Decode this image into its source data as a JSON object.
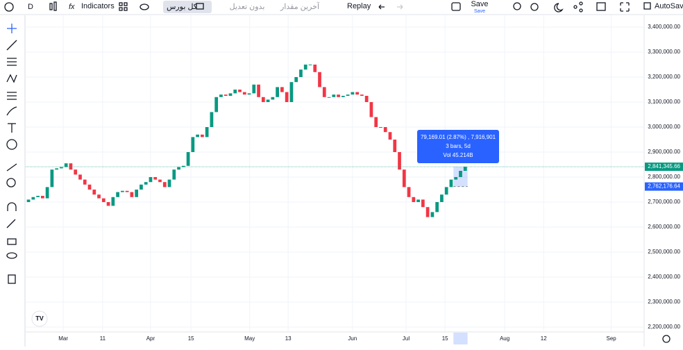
{
  "toolbar": {
    "interval": "D",
    "indicators": "Indicators",
    "symbol": "کل بورس",
    "adjustment": "بدون تعدیل",
    "price_source": "آخرین مقدار",
    "replay": "Replay",
    "save": "Save",
    "save_sub": "Save",
    "autosave": "AutoSave"
  },
  "tooltip": {
    "change": "79,169.01 (2.87%) , 7,916,901",
    "range": "3 bars, 5d",
    "volume": "Vol 45.214B"
  },
  "chart_data": {
    "type": "candlestick",
    "x": [
      0,
      1,
      2,
      3,
      4,
      5,
      6,
      7,
      8,
      9,
      10,
      11,
      12,
      13,
      14,
      15,
      16,
      17,
      18,
      19,
      20,
      21,
      22,
      23,
      24,
      25,
      26,
      27,
      28,
      29,
      30,
      31,
      32,
      33,
      34,
      35,
      36,
      37,
      38,
      39,
      40,
      41,
      42,
      43,
      44,
      45,
      46,
      47,
      48,
      49,
      50,
      51,
      52,
      53,
      54,
      55,
      56,
      57,
      58,
      59,
      60,
      61,
      62,
      63,
      64,
      65,
      66,
      67,
      68,
      69,
      70,
      71,
      72,
      73,
      74,
      75,
      76,
      77,
      78,
      79,
      80,
      81,
      82,
      83,
      84,
      85,
      86,
      87,
      88,
      89,
      90,
      91,
      92,
      93
    ],
    "open": [
      2700000,
      2710000,
      2720000,
      2725000,
      2715000,
      2760000,
      2830000,
      2835000,
      2840000,
      2855000,
      2830000,
      2810000,
      2790000,
      2770000,
      2750000,
      2730000,
      2715000,
      2700000,
      2685000,
      2720000,
      2740000,
      2745000,
      2740000,
      2720000,
      2750000,
      2770000,
      2780000,
      2800000,
      2790000,
      2780000,
      2760000,
      2790000,
      2830000,
      2840000,
      2845000,
      2900000,
      2960000,
      2970000,
      2960000,
      3000000,
      3060000,
      3120000,
      3130000,
      3125000,
      3135000,
      3150000,
      3140000,
      3130000,
      3135000,
      3170000,
      3120000,
      3100000,
      3110000,
      3120000,
      3160000,
      3140000,
      3100000,
      3180000,
      3200000,
      3230000,
      3250000,
      3250000,
      3220000,
      3160000,
      3120000,
      3120000,
      3130000,
      3120000,
      3125000,
      3130000,
      3140000,
      3130000,
      3125000,
      3100000,
      3040000,
      3000000,
      3000000,
      2980000,
      2950000,
      2900000,
      2830000,
      2760000,
      2720000,
      2700000,
      2710000,
      2680000,
      2640000,
      2660000,
      2700000,
      2730000,
      2760000,
      2790000,
      2800000,
      2825000
    ],
    "close": [
      2710000,
      2720000,
      2725000,
      2715000,
      2760000,
      2830000,
      2835000,
      2840000,
      2855000,
      2830000,
      2810000,
      2790000,
      2770000,
      2750000,
      2730000,
      2715000,
      2700000,
      2685000,
      2720000,
      2740000,
      2745000,
      2740000,
      2720000,
      2750000,
      2770000,
      2780000,
      2800000,
      2790000,
      2780000,
      2760000,
      2790000,
      2830000,
      2840000,
      2845000,
      2900000,
      2960000,
      2970000,
      2960000,
      3000000,
      3060000,
      3120000,
      3130000,
      3125000,
      3135000,
      3150000,
      3140000,
      3130000,
      3135000,
      3170000,
      3120000,
      3100000,
      3110000,
      3120000,
      3160000,
      3140000,
      3100000,
      3180000,
      3200000,
      3230000,
      3250000,
      3250000,
      3220000,
      3160000,
      3120000,
      3120000,
      3130000,
      3120000,
      3125000,
      3130000,
      3140000,
      3130000,
      3125000,
      3100000,
      3040000,
      3000000,
      3000000,
      2980000,
      2950000,
      2900000,
      2830000,
      2760000,
      2720000,
      2700000,
      2710000,
      2680000,
      2640000,
      2660000,
      2700000,
      2730000,
      2760000,
      2790000,
      2800000,
      2825000,
      2841345.66
    ],
    "up_color": "#089981",
    "down_color": "#f23645",
    "xlim": [
      -0.6,
      131.1
    ],
    "xticks": [
      {
        "value": 7.4,
        "label": "Mar"
      },
      {
        "value": 15.8,
        "label": "11"
      },
      {
        "value": 26.0,
        "label": "Apr"
      },
      {
        "value": 34.6,
        "label": "15"
      },
      {
        "value": 47.1,
        "label": "May"
      },
      {
        "value": 55.3,
        "label": "13"
      },
      {
        "value": 69.0,
        "label": "Jun"
      },
      {
        "value": 80.4,
        "label": "Jul"
      },
      {
        "value": 88.7,
        "label": "15"
      },
      {
        "value": 101.4,
        "label": "Aug"
      },
      {
        "value": 109.7,
        "label": "12"
      },
      {
        "value": 124.1,
        "label": "Sep"
      }
    ],
    "ylim": [
      2180556,
      3447222
    ],
    "yticks": [
      {
        "value": 3400000,
        "label": "3,400,000.00"
      },
      {
        "value": 3300000,
        "label": "3,300,000.00"
      },
      {
        "value": 3200000,
        "label": "3,200,000.00"
      },
      {
        "value": 3100000,
        "label": "3,100,000.00"
      },
      {
        "value": 3000000,
        "label": "3,000,000.00"
      },
      {
        "value": 2900000,
        "label": "2,900,000.00"
      },
      {
        "value": 2800000,
        "label": "2,800,000.00"
      },
      {
        "value": 2700000,
        "label": "2,700,000.00"
      },
      {
        "value": 2600000,
        "label": "2,600,000.00"
      },
      {
        "value": 2500000,
        "label": "2,500,000.00"
      },
      {
        "value": 2400000,
        "label": "2,400,000.00"
      },
      {
        "value": 2300000,
        "label": "2,300,000.00"
      },
      {
        "value": 2200000,
        "label": "2,200,000.00"
      }
    ],
    "last_price": {
      "value": 2841345.66,
      "label": "2,841,345.66"
    },
    "crosshair_price": {
      "value": 2762176.64,
      "label": "2,762,176.64"
    }
  }
}
